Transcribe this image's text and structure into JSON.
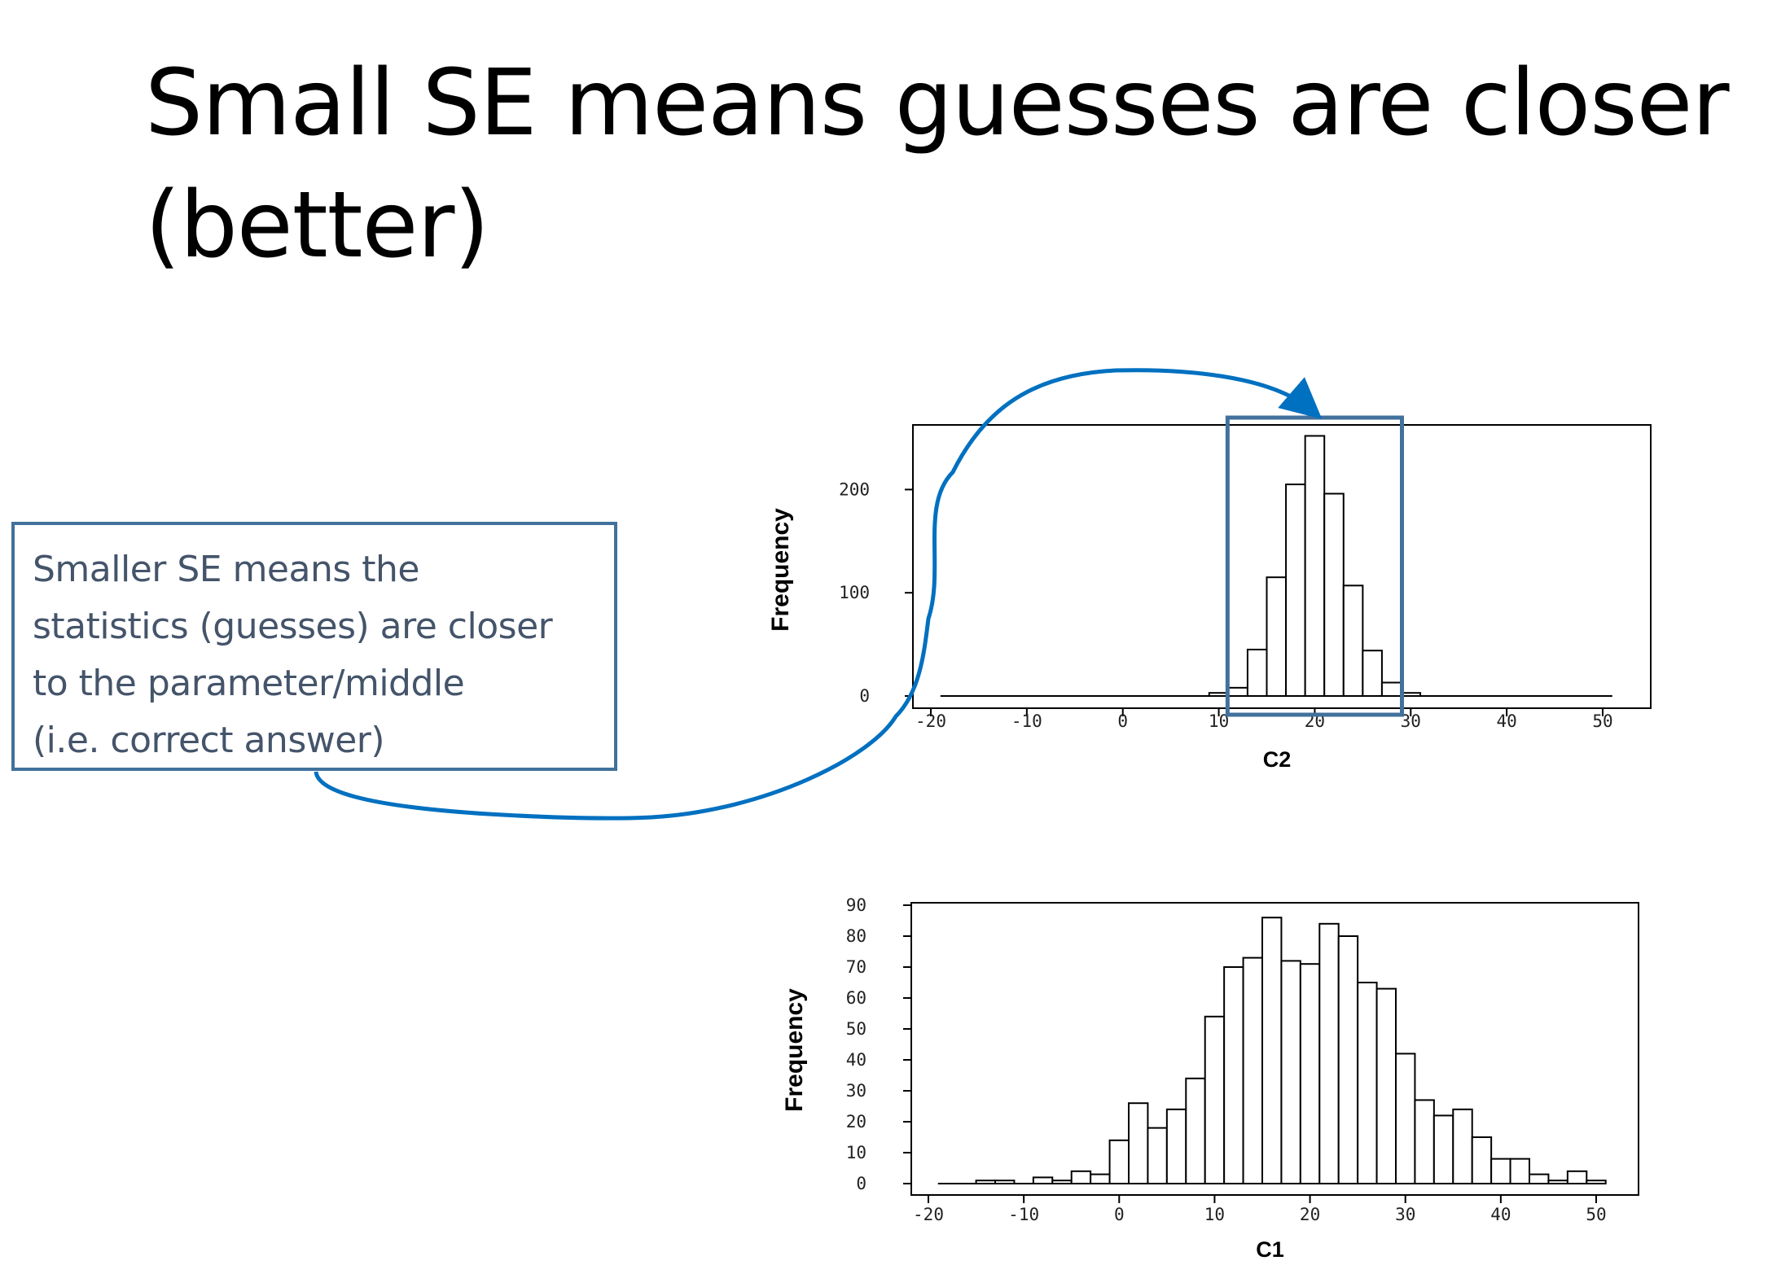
{
  "slide": {
    "title": "Small SE means guesses are closer (better)"
  },
  "callout": {
    "lines": [
      "Smaller SE means the",
      "statistics (guesses) are closer",
      "to the parameter/middle",
      "(i.e. correct answer)"
    ],
    "border_color": "#41719c",
    "text_color": "#44546a"
  },
  "highlight": {
    "box_color": "#41719c",
    "arrow_color": "#0070c0",
    "x_range": [
      11,
      29
    ]
  },
  "chart_data": [
    {
      "type": "histogram",
      "xlabel": "C2",
      "ylabel": "Frequency",
      "xlim": [
        -20,
        50
      ],
      "ylim": [
        0,
        250
      ],
      "xticks": [
        -20,
        -10,
        0,
        10,
        20,
        30,
        40,
        50
      ],
      "yticks": [
        0,
        100,
        200
      ],
      "bin_width": 2,
      "bin_starts": [
        -19,
        9,
        11,
        13,
        15,
        17,
        19,
        21,
        23,
        25,
        27,
        29,
        49
      ],
      "counts": [
        0,
        3,
        8,
        45,
        115,
        205,
        252,
        196,
        107,
        44,
        13,
        3,
        0
      ]
    },
    {
      "type": "histogram",
      "xlabel": "C1",
      "ylabel": "Frequency",
      "xlim": [
        -20,
        50
      ],
      "ylim": [
        0,
        90
      ],
      "xticks": [
        -20,
        -10,
        0,
        10,
        20,
        30,
        40,
        50
      ],
      "yticks": [
        0,
        10,
        20,
        30,
        40,
        50,
        60,
        70,
        80,
        90
      ],
      "bin_width": 2,
      "bin_start": -19,
      "counts": [
        0,
        0,
        1,
        1,
        0,
        2,
        1,
        4,
        3,
        14,
        26,
        18,
        24,
        34,
        54,
        70,
        73,
        86,
        72,
        71,
        84,
        80,
        65,
        63,
        42,
        27,
        22,
        24,
        15,
        8,
        8,
        3,
        1,
        4,
        1
      ]
    }
  ]
}
